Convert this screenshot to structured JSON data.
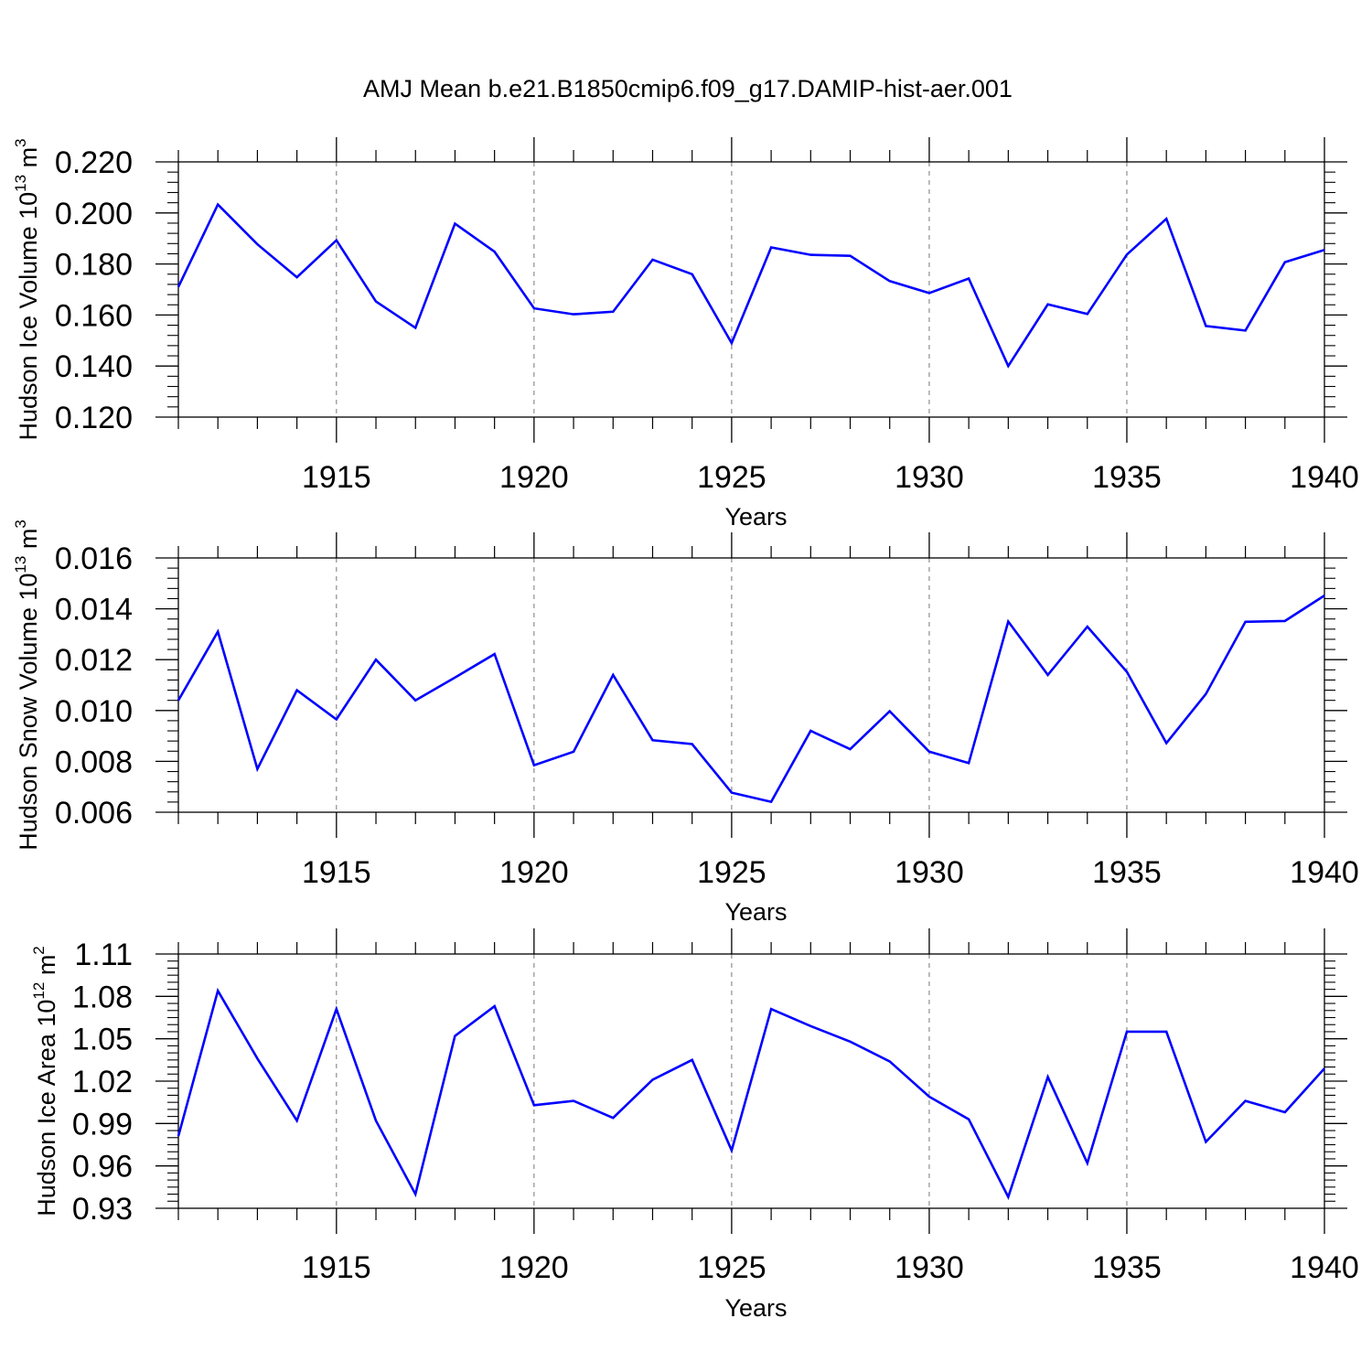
{
  "figure_title": "AMJ Mean b.e21.B1850cmip6.f09_g17.DAMIP-hist-aer.001",
  "colors": {
    "line": "#0000ff",
    "axes": "#000000",
    "grid": "#777777"
  },
  "panels": [
    {
      "ylabel_text": "Hudson Ice Volume 10",
      "ylabel_exp": "13",
      "ylabel_unit": "m",
      "ylabel_unit_exp": "3",
      "xlabel": "Years"
    },
    {
      "ylabel_text": "Hudson Snow Volume 10",
      "ylabel_exp": "13",
      "ylabel_unit": "m",
      "ylabel_unit_exp": "3",
      "xlabel": "Years"
    },
    {
      "ylabel_text": "Hudson Ice Area 10",
      "ylabel_exp": "12",
      "ylabel_unit": "m",
      "ylabel_unit_exp": "2",
      "xlabel": "Years"
    }
  ],
  "chart_data": [
    {
      "type": "line",
      "title": "AMJ Mean b.e21.B1850cmip6.f09_g17.DAMIP-hist-aer.001",
      "xlabel": "Years",
      "ylabel": "Hudson Ice Volume 10^13 m^3",
      "xlim": [
        1911,
        1940
      ],
      "ylim": [
        0.12,
        0.22
      ],
      "xticks": [
        1915,
        1920,
        1925,
        1930,
        1935,
        1940
      ],
      "yticks": [
        0.12,
        0.14,
        0.16,
        0.18,
        0.2,
        0.22
      ],
      "ytick_labels": [
        "0.120",
        "0.140",
        "0.160",
        "0.180",
        "0.200",
        "0.220"
      ],
      "grid": "vertical dashed at major x ticks",
      "series": [
        {
          "name": "Ice Volume",
          "x": [
            1911,
            1912,
            1913,
            1914,
            1915,
            1916,
            1917,
            1918,
            1919,
            1920,
            1921,
            1922,
            1923,
            1924,
            1925,
            1926,
            1927,
            1928,
            1929,
            1930,
            1931,
            1932,
            1933,
            1934,
            1935,
            1936,
            1937,
            1938,
            1939,
            1940
          ],
          "values": [
            0.171,
            0.2033,
            0.1877,
            0.1748,
            0.1893,
            0.1653,
            0.155,
            0.1958,
            0.1848,
            0.1626,
            0.1603,
            0.1613,
            0.1817,
            0.176,
            0.149,
            0.1865,
            0.1836,
            0.1832,
            0.1733,
            0.1686,
            0.1743,
            0.14,
            0.1642,
            0.1604,
            0.1837,
            0.1977,
            0.1557,
            0.1539,
            0.1807,
            0.1855
          ]
        }
      ]
    },
    {
      "type": "line",
      "title": "",
      "xlabel": "Years",
      "ylabel": "Hudson Snow Volume 10^13 m^3",
      "xlim": [
        1911,
        1940
      ],
      "ylim": [
        0.006,
        0.016
      ],
      "xticks": [
        1915,
        1920,
        1925,
        1930,
        1935,
        1940
      ],
      "yticks": [
        0.006,
        0.008,
        0.01,
        0.012,
        0.014,
        0.016
      ],
      "ytick_labels": [
        "0.006",
        "0.008",
        "0.010",
        "0.012",
        "0.014",
        "0.016"
      ],
      "grid": "vertical dashed at major x ticks",
      "series": [
        {
          "name": "Snow Volume",
          "x": [
            1911,
            1912,
            1913,
            1914,
            1915,
            1916,
            1917,
            1918,
            1919,
            1920,
            1921,
            1922,
            1923,
            1924,
            1925,
            1926,
            1927,
            1928,
            1929,
            1930,
            1931,
            1932,
            1933,
            1934,
            1935,
            1936,
            1937,
            1938,
            1939,
            1940
          ],
          "values": [
            0.0104,
            0.0131,
            0.0077,
            0.0108,
            0.00965,
            0.012,
            0.0104,
            0.0113,
            0.01222,
            0.00785,
            0.00838,
            0.0114,
            0.00883,
            0.00868,
            0.00677,
            0.00641,
            0.0092,
            0.00848,
            0.00997,
            0.00838,
            0.00793,
            0.0135,
            0.0114,
            0.0133,
            0.01152,
            0.00872,
            0.01065,
            0.01349,
            0.01352,
            0.01452
          ]
        }
      ]
    },
    {
      "type": "line",
      "title": "",
      "xlabel": "Years",
      "ylabel": "Hudson Ice Area 10^12 m^2",
      "xlim": [
        1911,
        1940
      ],
      "ylim": [
        0.93,
        1.11
      ],
      "xticks": [
        1915,
        1920,
        1925,
        1930,
        1935,
        1940
      ],
      "yticks": [
        0.93,
        0.96,
        0.99,
        1.02,
        1.05,
        1.08,
        1.11
      ],
      "ytick_labels": [
        "0.93",
        "0.96",
        "0.99",
        "1.02",
        "1.05",
        "1.08",
        "1.11"
      ],
      "grid": "vertical dashed at major x ticks",
      "series": [
        {
          "name": "Ice Area",
          "x": [
            1911,
            1912,
            1913,
            1914,
            1915,
            1916,
            1917,
            1918,
            1919,
            1920,
            1921,
            1922,
            1923,
            1924,
            1925,
            1926,
            1927,
            1928,
            1929,
            1930,
            1931,
            1932,
            1933,
            1934,
            1935,
            1936,
            1937,
            1938,
            1939,
            1940
          ],
          "values": [
            0.981,
            1.084,
            1.036,
            0.992,
            1.071,
            0.992,
            0.94,
            1.052,
            1.073,
            1.003,
            1.006,
            0.994,
            1.021,
            1.035,
            0.971,
            1.071,
            1.059,
            1.048,
            1.034,
            1.009,
            0.993,
            0.938,
            1.023,
            0.962,
            1.055,
            1.055,
            0.977,
            1.006,
            0.998,
            1.029
          ]
        }
      ]
    }
  ]
}
